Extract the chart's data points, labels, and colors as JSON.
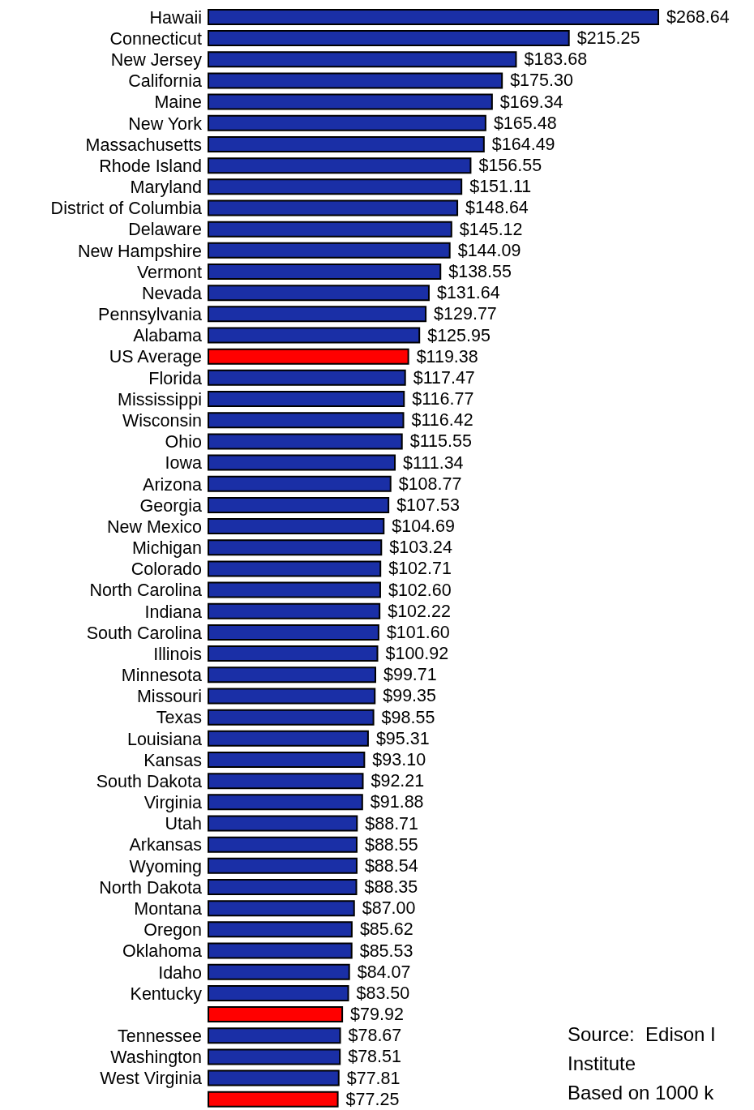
{
  "chart_data": {
    "type": "bar",
    "orientation": "horizontal",
    "categories": [
      "Hawaii",
      "Connecticut",
      "New Jersey",
      "California",
      "Maine",
      "New York",
      "Massachusetts",
      "Rhode Island",
      "Maryland",
      "District of Columbia",
      "Delaware",
      "New Hampshire",
      "Vermont",
      "Nevada",
      "Pennsylvania",
      "Alabama",
      "US Average",
      "Florida",
      "Mississippi",
      "Wisconsin",
      "Ohio",
      "Iowa",
      "Arizona",
      "Georgia",
      "New Mexico",
      "Michigan",
      "Colorado",
      "North Carolina",
      "Indiana",
      "South Carolina",
      "Illinois",
      "Minnesota",
      "Missouri",
      "Texas",
      "Louisiana",
      "Kansas",
      "South Dakota",
      "Virginia",
      "Utah",
      "Arkansas",
      "Wyoming",
      "North Dakota",
      "Montana",
      "Oregon",
      "Oklahoma",
      "Idaho",
      "Kentucky",
      null,
      "Tennessee",
      "Washington",
      "West Virginia",
      null
    ],
    "values": [
      268.64,
      215.25,
      183.68,
      175.3,
      169.34,
      165.48,
      164.49,
      156.55,
      151.11,
      148.64,
      145.12,
      144.09,
      138.55,
      131.64,
      129.77,
      125.95,
      119.38,
      117.47,
      116.77,
      116.42,
      115.55,
      111.34,
      108.77,
      107.53,
      104.69,
      103.24,
      102.71,
      102.6,
      102.22,
      101.6,
      100.92,
      99.71,
      99.35,
      98.55,
      95.31,
      93.1,
      92.21,
      91.88,
      88.71,
      88.55,
      88.54,
      88.35,
      87.0,
      85.62,
      85.53,
      84.07,
      83.5,
      79.92,
      78.67,
      78.51,
      77.81,
      77.25
    ],
    "value_labels": [
      "$268.64",
      "$215.25",
      "$183.68",
      "$175.30",
      "$169.34",
      "$165.48",
      "$164.49",
      "$156.55",
      "$151.11",
      "$148.64",
      "$145.12",
      "$144.09",
      "$138.55",
      "$131.64",
      "$129.77",
      "$125.95",
      "$119.38",
      "$117.47",
      "$116.77",
      "$116.42",
      "$115.55",
      "$111.34",
      "$108.77",
      "$107.53",
      "$104.69",
      "$103.24",
      "$102.71",
      "$102.60",
      "$102.22",
      "$101.60",
      "$100.92",
      "$99.71",
      "$99.35",
      "$98.55",
      "$95.31",
      "$93.10",
      "$92.21",
      "$91.88",
      "$88.71",
      "$88.55",
      "$88.54",
      "$88.35",
      "$87.00",
      "$85.62",
      "$85.53",
      "$84.07",
      "$83.50",
      "$79.92",
      "$78.67",
      "$78.51",
      "$77.81",
      "$77.25"
    ],
    "colors": [
      "#1a2fa6",
      "#1a2fa6",
      "#1a2fa6",
      "#1a2fa6",
      "#1a2fa6",
      "#1a2fa6",
      "#1a2fa6",
      "#1a2fa6",
      "#1a2fa6",
      "#1a2fa6",
      "#1a2fa6",
      "#1a2fa6",
      "#1a2fa6",
      "#1a2fa6",
      "#1a2fa6",
      "#1a2fa6",
      "#ff0000",
      "#1a2fa6",
      "#1a2fa6",
      "#1a2fa6",
      "#1a2fa6",
      "#1a2fa6",
      "#1a2fa6",
      "#1a2fa6",
      "#1a2fa6",
      "#1a2fa6",
      "#1a2fa6",
      "#1a2fa6",
      "#1a2fa6",
      "#1a2fa6",
      "#1a2fa6",
      "#1a2fa6",
      "#1a2fa6",
      "#1a2fa6",
      "#1a2fa6",
      "#1a2fa6",
      "#1a2fa6",
      "#1a2fa6",
      "#1a2fa6",
      "#1a2fa6",
      "#1a2fa6",
      "#1a2fa6",
      "#1a2fa6",
      "#1a2fa6",
      "#1a2fa6",
      "#1a2fa6",
      "#1a2fa6",
      "#ff0000",
      "#1a2fa6",
      "#1a2fa6",
      "#1a2fa6",
      "#ff0000"
    ],
    "annotations": [
      "Source:  Edison I",
      "Institute",
      "Based on 1000 k"
    ]
  }
}
